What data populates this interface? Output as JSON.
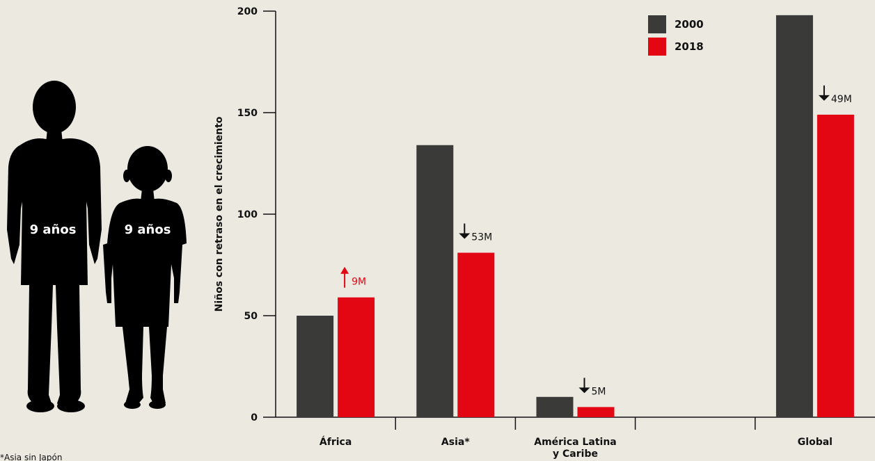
{
  "figures": {
    "tall_child_label": "9 años",
    "short_child_label": "9 años"
  },
  "footnote": "*Asia sin Japón",
  "colors": {
    "background": "#ECE9E0",
    "series_2000": "#3A3A38",
    "series_2018": "#E30613",
    "axis": "#111111",
    "silhouette": "#000000"
  },
  "chart_data": {
    "type": "bar",
    "title": "",
    "xlabel": "",
    "ylabel": "Niños con retraso en el crecimiento",
    "ylim": [
      0,
      200
    ],
    "yticks": [
      0,
      50,
      100,
      150,
      200
    ],
    "grid": false,
    "legend": "top-right",
    "categories": [
      "África",
      "Asia*",
      "América Latina y Caribe",
      "",
      "Global"
    ],
    "category_lines": [
      [
        "África"
      ],
      [
        "Asia*"
      ],
      [
        "América Latina",
        "y Caribe"
      ],
      [
        ""
      ],
      [
        "Global"
      ]
    ],
    "series": [
      {
        "name": "2000",
        "color": "#3A3A38",
        "values": [
          50,
          134,
          10,
          null,
          198
        ]
      },
      {
        "name": "2018",
        "color": "#E30613",
        "values": [
          59,
          81,
          5,
          null,
          149
        ]
      }
    ],
    "changes": [
      {
        "category": "África",
        "label": "9M",
        "direction": "up",
        "color": "#E30613"
      },
      {
        "category": "Asia*",
        "label": "53M",
        "direction": "down",
        "color": "#111111"
      },
      {
        "category": "América Latina y Caribe",
        "label": "5M",
        "direction": "down",
        "color": "#111111"
      },
      {
        "category": "Global",
        "label": "49M",
        "direction": "down",
        "color": "#111111"
      }
    ]
  }
}
